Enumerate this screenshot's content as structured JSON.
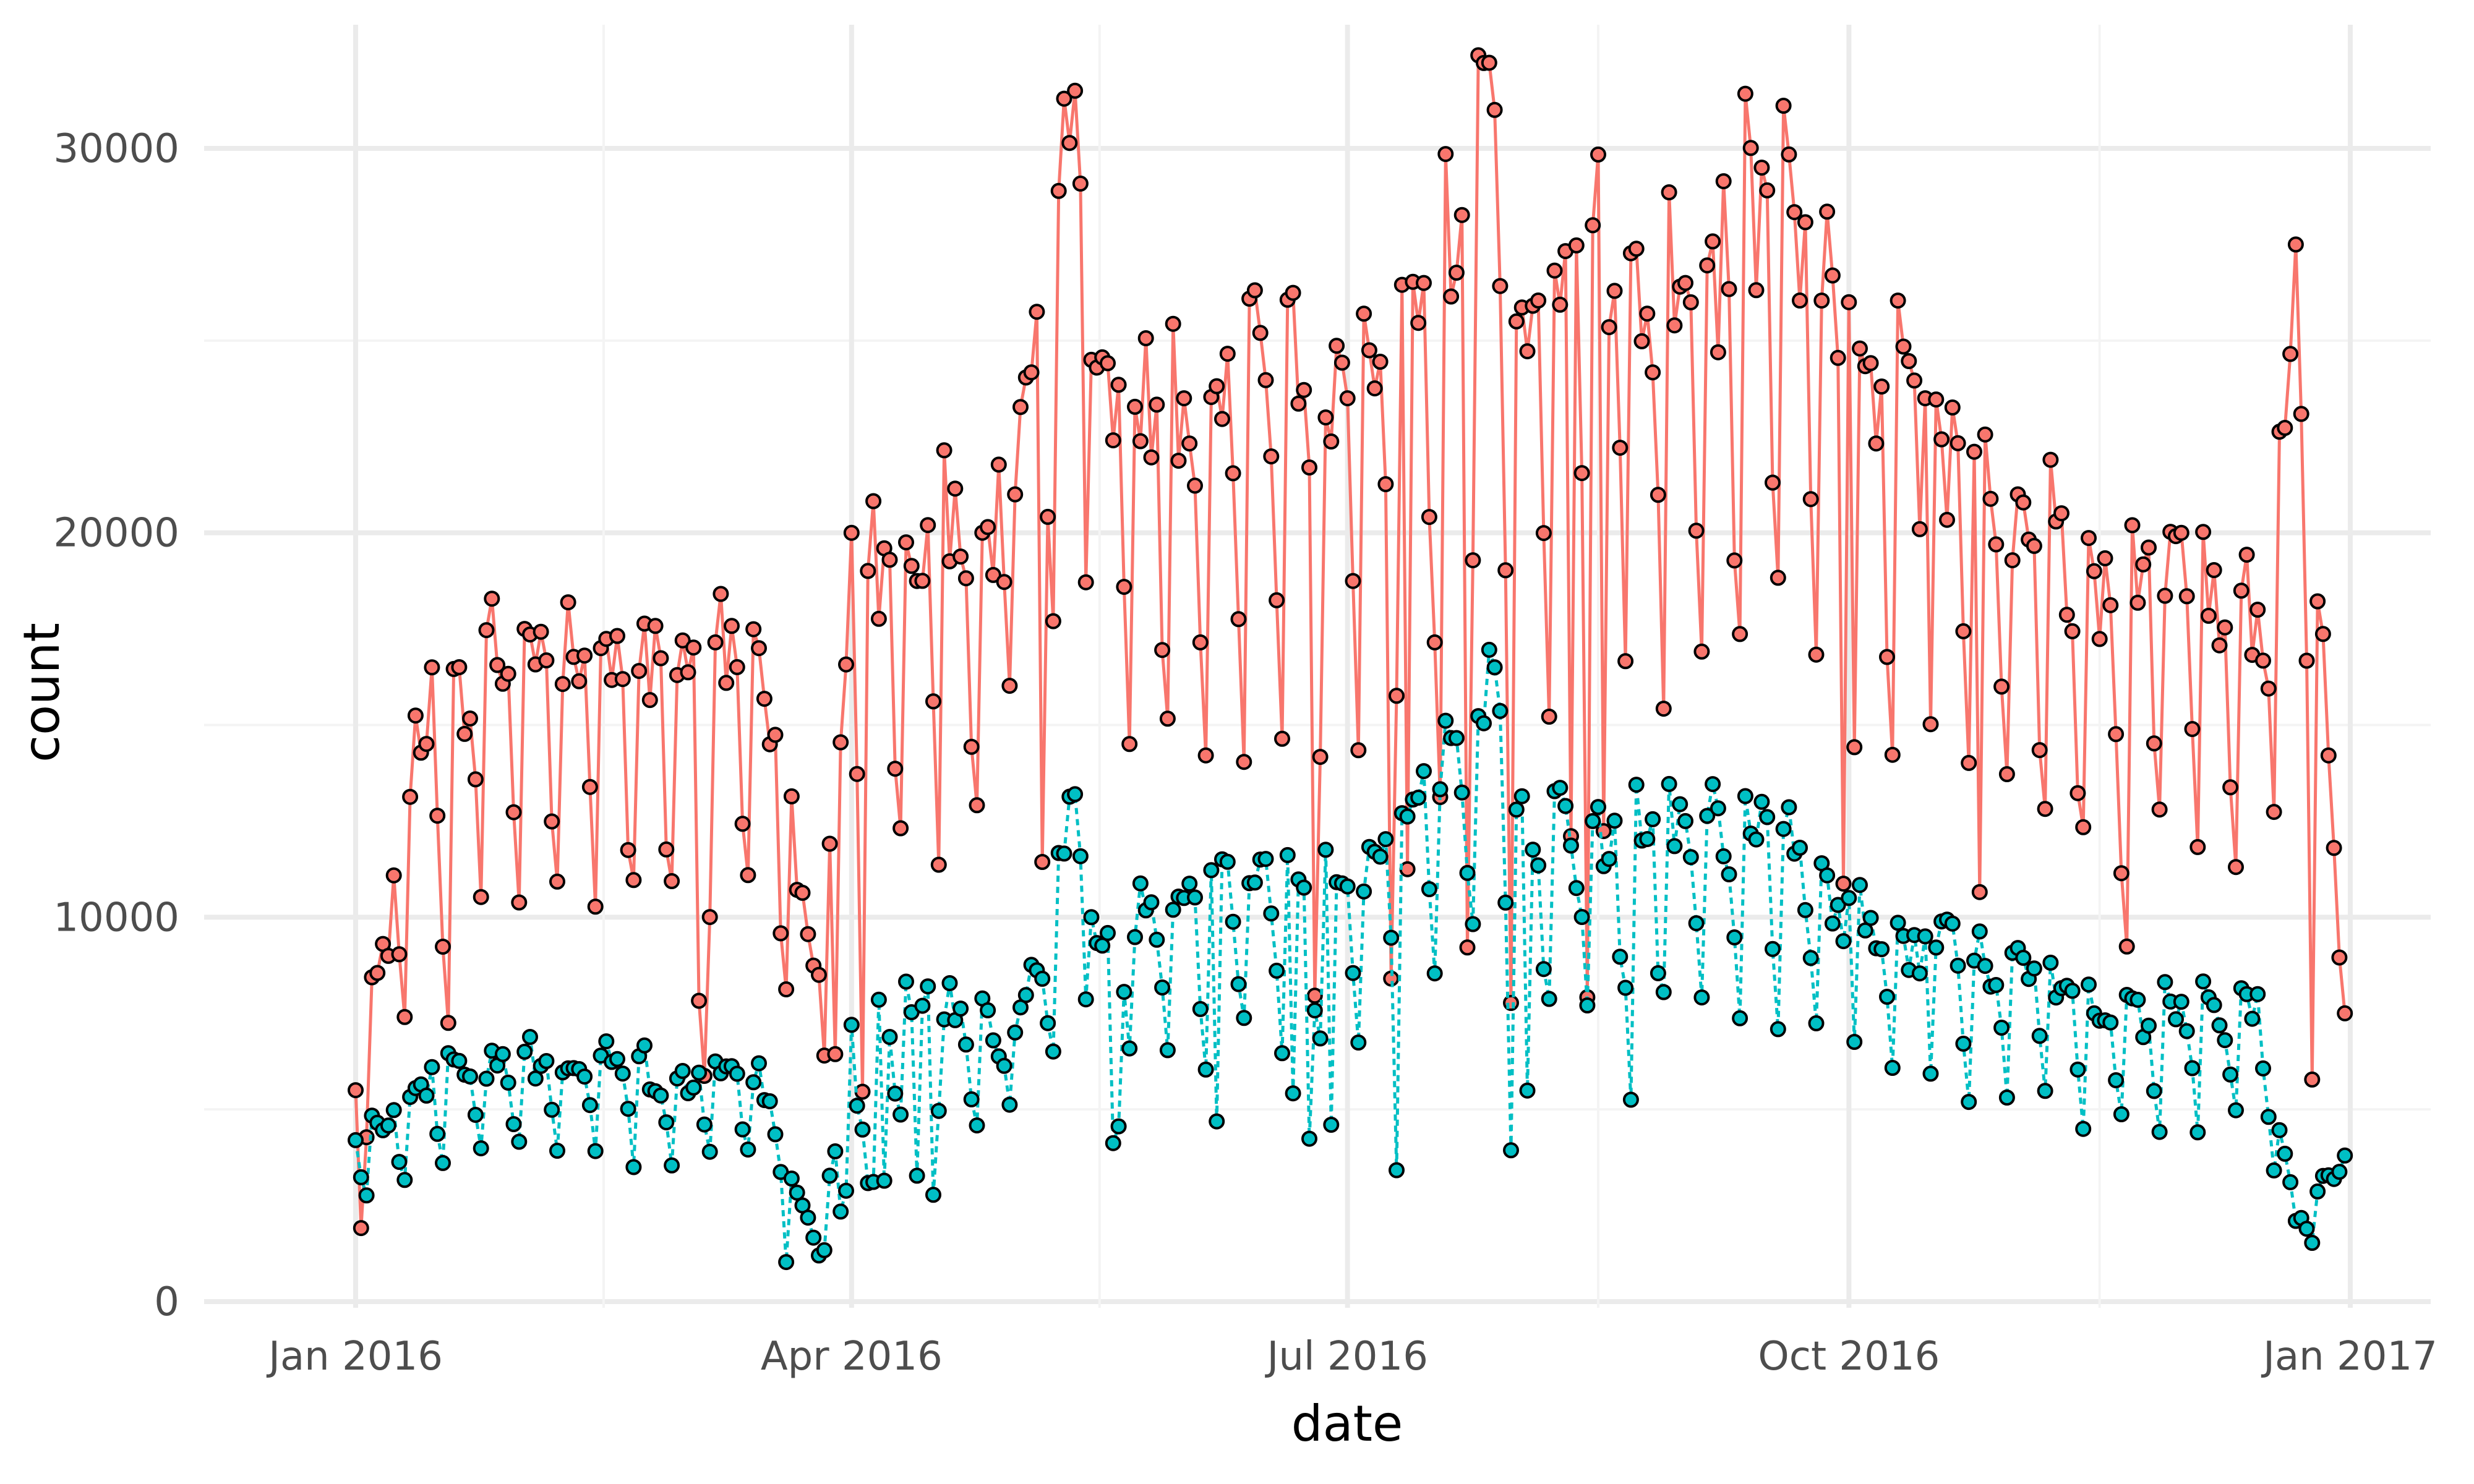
{
  "chart_data": {
    "type": "line",
    "title": "",
    "xlabel": "date",
    "ylabel": "count",
    "grid": true,
    "legend": "none",
    "xlim": [
      "2016-01-01",
      "2016-12-31"
    ],
    "ylim": [
      0,
      32000
    ],
    "x_ticks": [
      {
        "date": "2016-01-01",
        "label": "Jan 2016"
      },
      {
        "date": "2016-04-01",
        "label": "Apr 2016"
      },
      {
        "date": "2016-07-01",
        "label": "Jul 2016"
      },
      {
        "date": "2016-10-01",
        "label": "Oct 2016"
      },
      {
        "date": "2017-01-01",
        "label": "Jan 2017"
      }
    ],
    "y_ticks": [
      0,
      10000,
      20000,
      30000
    ],
    "y_tick_labels": [
      "0",
      "10000",
      "20000",
      "30000"
    ],
    "series": [
      {
        "color": "#F8766D",
        "line_style": "solid",
        "x": [
          "2016-01-01",
          "2016-01-15",
          "2016-02-01",
          "2016-02-15",
          "2016-03-01",
          "2016-03-15",
          "2016-03-26",
          "2016-04-01",
          "2016-04-15",
          "2016-05-01",
          "2016-05-12",
          "2016-05-15",
          "2016-06-01",
          "2016-06-15",
          "2016-07-01",
          "2016-07-15",
          "2016-07-28",
          "2016-08-01",
          "2016-08-15",
          "2016-09-01",
          "2016-09-15",
          "2016-10-01",
          "2016-10-15",
          "2016-11-01",
          "2016-11-15",
          "2016-12-01",
          "2016-12-15",
          "2016-12-22",
          "2016-12-31"
        ],
        "y": [
          5500,
          16500,
          17500,
          17000,
          17200,
          17000,
          8500,
          20000,
          20200,
          21000,
          31500,
          24500,
          23500,
          25200,
          23500,
          26500,
          31000,
          25500,
          28000,
          26500,
          29500,
          26000,
          23500,
          21000,
          19000,
          20000,
          18000,
          27500,
          7500
        ]
      },
      {
        "color": "#00BFC4",
        "line_style": "dotted",
        "x": [
          "2016-01-01",
          "2016-01-15",
          "2016-02-01",
          "2016-02-15",
          "2016-03-01",
          "2016-03-15",
          "2016-03-26",
          "2016-04-01",
          "2016-04-15",
          "2016-05-01",
          "2016-05-12",
          "2016-05-15",
          "2016-06-01",
          "2016-06-15",
          "2016-07-01",
          "2016-07-15",
          "2016-07-28",
          "2016-08-01",
          "2016-08-15",
          "2016-09-01",
          "2016-09-15",
          "2016-10-01",
          "2016-10-15",
          "2016-11-01",
          "2016-11-15",
          "2016-12-01",
          "2016-12-15",
          "2016-12-22",
          "2016-12-31"
        ],
        "y": [
          4200,
          6100,
          6500,
          6400,
          6000,
          6200,
          1200,
          7200,
          8200,
          7000,
          13200,
          10000,
          10500,
          11500,
          10800,
          13800,
          16500,
          12800,
          12500,
          12500,
          13000,
          10500,
          9500,
          9200,
          7500,
          7800,
          8000,
          2100,
          3800
        ]
      }
    ],
    "points_per_series": 366
  }
}
